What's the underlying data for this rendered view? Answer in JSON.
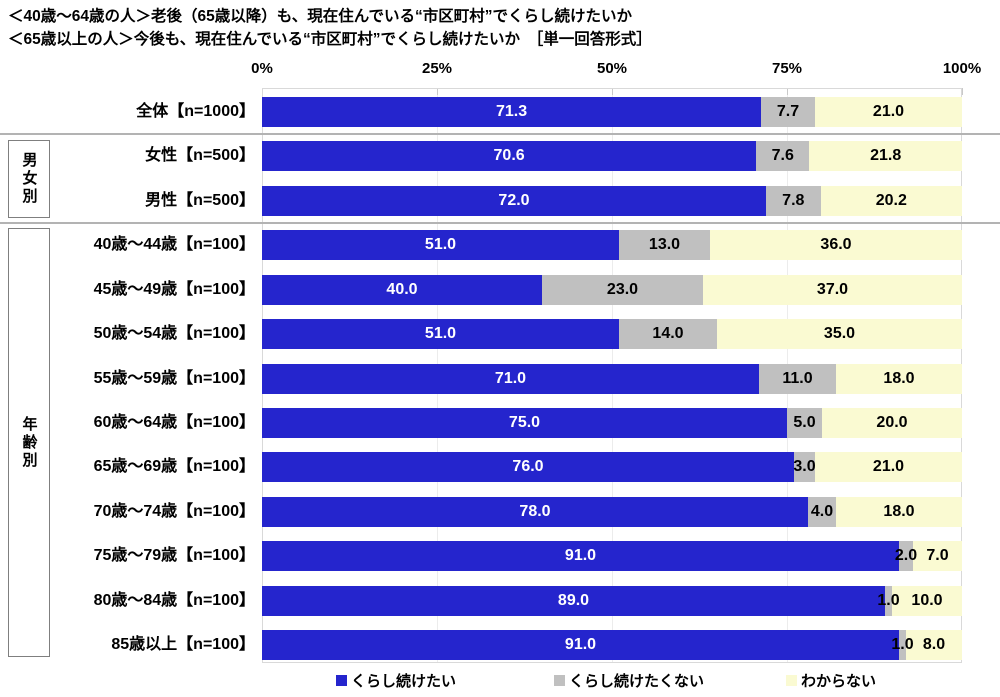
{
  "title": {
    "line1": "＜40歳～64歳の人＞老後（65歳以降）も、現在住んでいる“市区町村”でくらし続けたいか",
    "line2": "＜65歳以上の人＞今後も、現在住んでいる“市区町村”でくらし続けたいか　［単一回答形式］"
  },
  "colors": {
    "stay": "#2525cd",
    "not_stay": "#c0c0c0",
    "unknown": "#fafad2",
    "value_text_on_stay": "#ffffff",
    "value_text_on_other": "#000000",
    "divider": "#b3b3b3"
  },
  "groups": [
    {
      "label": "男女別",
      "first_row": 1,
      "last_row": 2
    },
    {
      "label": "年齢別",
      "first_row": 3,
      "last_row": 12
    }
  ],
  "chart_data": {
    "type": "bar",
    "orientation": "horizontal",
    "stacked": true,
    "xlim": [
      0,
      100
    ],
    "x_ticks": [
      "0%",
      "25%",
      "50%",
      "75%",
      "100%"
    ],
    "grid": "light vertical at 25/50/75",
    "legend_position": "bottom",
    "series_names": [
      "くらし続けたい",
      "くらし続けたくない",
      "わからない"
    ],
    "categories": [
      "全体【n=1000】",
      "女性【n=500】",
      "男性【n=500】",
      "40歳～44歳【n=100】",
      "45歳～49歳【n=100】",
      "50歳～54歳【n=100】",
      "55歳～59歳【n=100】",
      "60歳～64歳【n=100】",
      "65歳～69歳【n=100】",
      "70歳～74歳【n=100】",
      "75歳～79歳【n=100】",
      "80歳～84歳【n=100】",
      "85歳以上【n=100】"
    ],
    "rows": [
      {
        "label": "全体【n=1000】",
        "values": [
          71.3,
          7.7,
          21.0
        ]
      },
      {
        "label": "女性【n=500】",
        "values": [
          70.6,
          7.6,
          21.8
        ]
      },
      {
        "label": "男性【n=500】",
        "values": [
          72.0,
          7.8,
          20.2
        ]
      },
      {
        "label": "40歳～44歳【n=100】",
        "values": [
          51.0,
          13.0,
          36.0
        ]
      },
      {
        "label": "45歳～49歳【n=100】",
        "values": [
          40.0,
          23.0,
          37.0
        ]
      },
      {
        "label": "50歳～54歳【n=100】",
        "values": [
          51.0,
          14.0,
          35.0
        ]
      },
      {
        "label": "55歳～59歳【n=100】",
        "values": [
          71.0,
          11.0,
          18.0
        ]
      },
      {
        "label": "60歳～64歳【n=100】",
        "values": [
          75.0,
          5.0,
          20.0
        ]
      },
      {
        "label": "65歳～69歳【n=100】",
        "values": [
          76.0,
          3.0,
          21.0
        ]
      },
      {
        "label": "70歳～74歳【n=100】",
        "values": [
          78.0,
          4.0,
          18.0
        ]
      },
      {
        "label": "75歳～79歳【n=100】",
        "values": [
          91.0,
          2.0,
          7.0
        ]
      },
      {
        "label": "80歳～84歳【n=100】",
        "values": [
          89.0,
          1.0,
          10.0
        ]
      },
      {
        "label": "85歳以上【n=100】",
        "values": [
          91.0,
          1.0,
          8.0
        ]
      }
    ],
    "legend": [
      {
        "label": "くらし続けたい",
        "color": "#2525cd"
      },
      {
        "label": "くらし続けたくない",
        "color": "#c0c0c0"
      },
      {
        "label": "わからない",
        "color": "#fafad2"
      }
    ]
  }
}
